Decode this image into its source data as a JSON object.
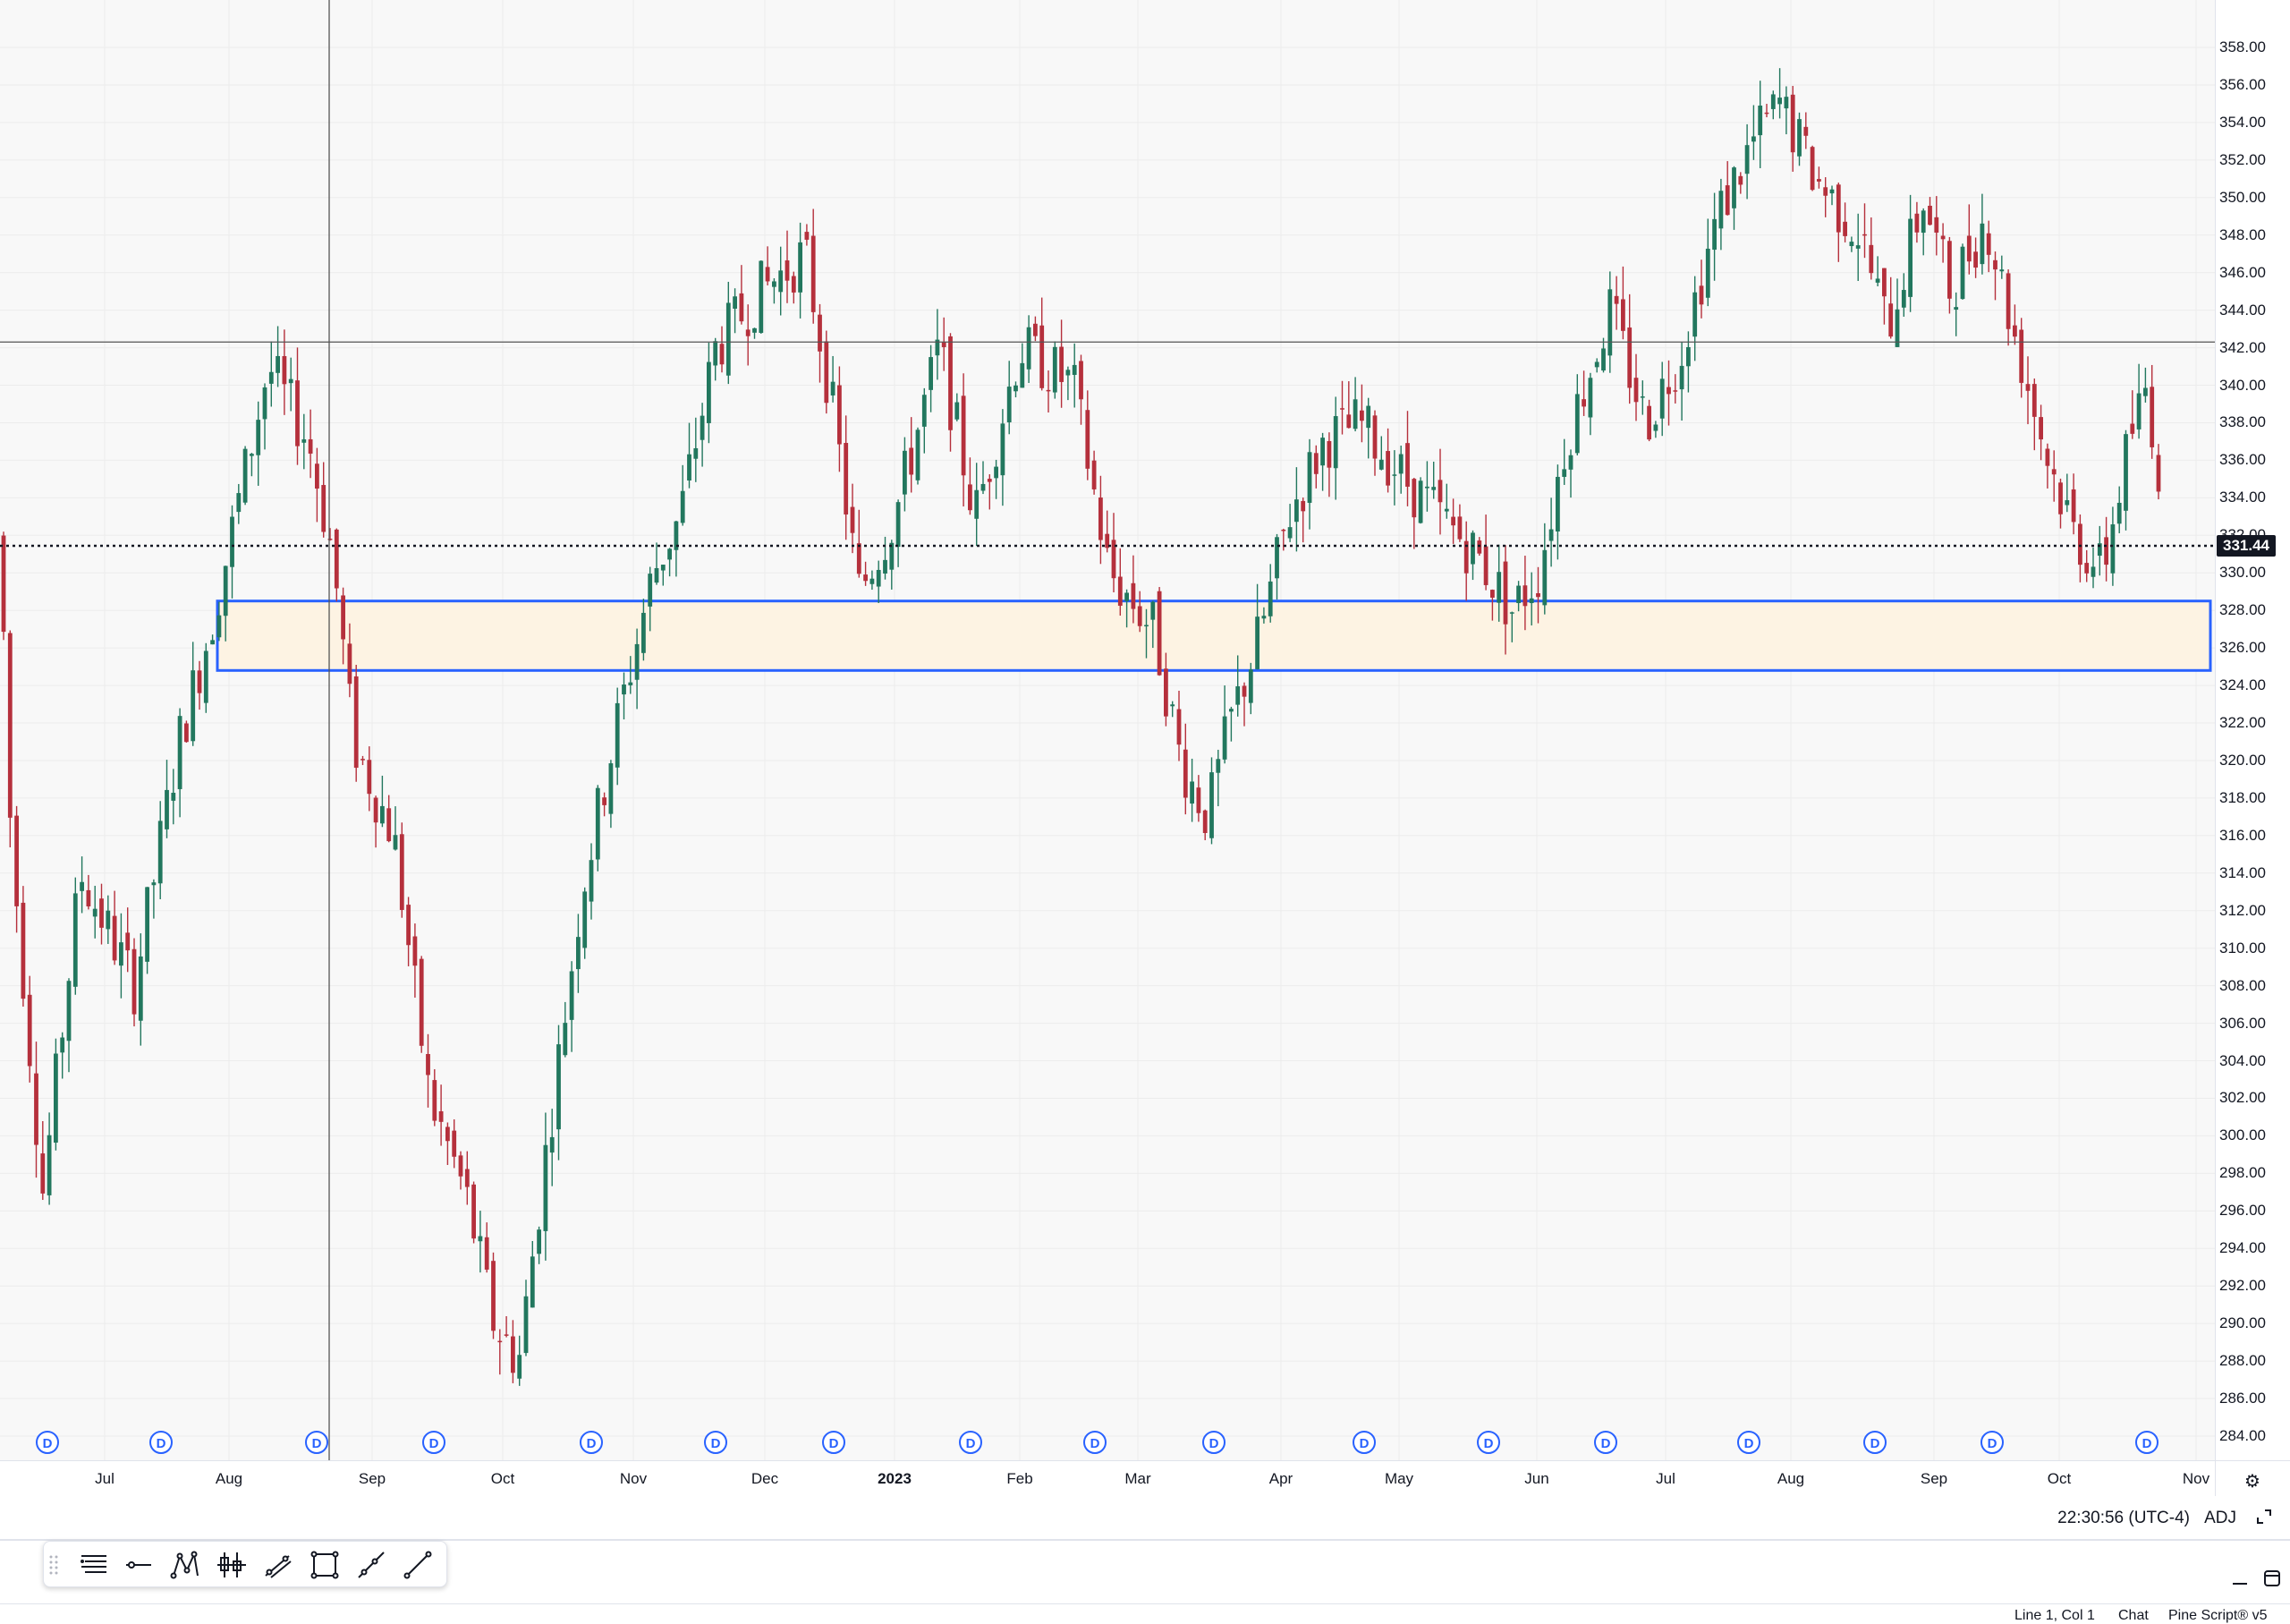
{
  "chart": {
    "price_labels": [
      "358.00",
      "356.00",
      "354.00",
      "352.00",
      "350.00",
      "348.00",
      "346.00",
      "344.00",
      "342.00",
      "340.00",
      "338.00",
      "336.00",
      "334.00",
      "332.00",
      "330.00",
      "328.00",
      "326.00",
      "324.00",
      "322.00",
      "320.00",
      "318.00",
      "316.00",
      "314.00",
      "312.00",
      "310.00",
      "308.00",
      "306.00",
      "304.00",
      "302.00",
      "300.00",
      "298.00",
      "296.00",
      "294.00",
      "292.00",
      "290.00",
      "288.00",
      "286.00",
      "284.00"
    ],
    "last_price": "331.44",
    "crosshair_price": 342.3,
    "time_labels": [
      {
        "text": "Jul",
        "bold": false
      },
      {
        "text": "Aug",
        "bold": false
      },
      {
        "text": "Sep",
        "bold": false
      },
      {
        "text": "Oct",
        "bold": false
      },
      {
        "text": "Nov",
        "bold": false
      },
      {
        "text": "Dec",
        "bold": false
      },
      {
        "text": "2023",
        "bold": true
      },
      {
        "text": "Feb",
        "bold": false
      },
      {
        "text": "Mar",
        "bold": false
      },
      {
        "text": "Apr",
        "bold": false
      },
      {
        "text": "May",
        "bold": false
      },
      {
        "text": "Jun",
        "bold": false
      },
      {
        "text": "Jul",
        "bold": false
      },
      {
        "text": "Aug",
        "bold": false
      },
      {
        "text": "Sep",
        "bold": false
      },
      {
        "text": "Oct",
        "bold": false
      },
      {
        "text": "Nov",
        "bold": false
      }
    ],
    "dividend_marker": "D",
    "zone": {
      "top_price": 328.5,
      "bottom_price": 324.8
    },
    "colors": {
      "up": "#22775e",
      "down": "#b5303c",
      "zone_fill": "#fdf3e3",
      "zone_border": "#2962ff",
      "grid": "#ececec",
      "crosshair": "#555555",
      "dividend": "#2962ff"
    }
  },
  "status": {
    "clock": "22:30:56 (UTC-4)",
    "adj": "ADJ"
  },
  "toolbar": {
    "tools": [
      "grip-icon",
      "hamburger-lines-icon",
      "horizontal-line-icon",
      "pattern-icon",
      "candles-icon",
      "trend-channel-icon",
      "rectangle-icon",
      "ray-icon",
      "trendline-icon"
    ]
  },
  "editor": {
    "line_col": "Line 1, Col 1",
    "chat": "Chat",
    "pine": "Pine Script® v5"
  }
}
